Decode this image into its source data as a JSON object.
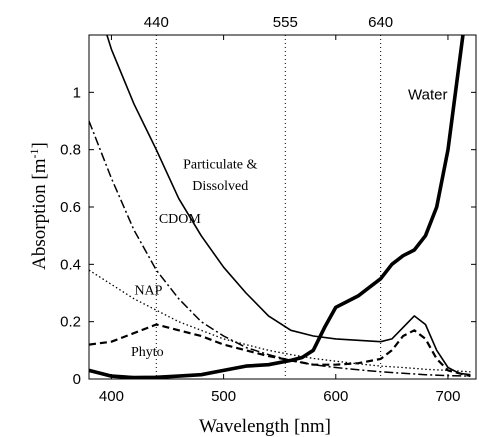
{
  "chart_data": {
    "type": "line",
    "xlabel": "Wavelength [nm]",
    "ylabel": "Absorption [m-1]",
    "ylabel_base": "Absorption [m",
    "ylabel_sup": "-1",
    "ylabel_close": "]",
    "xlim": [
      380,
      725
    ],
    "ylim": [
      0,
      1.2
    ],
    "x_ticks": [
      400,
      500,
      600,
      700
    ],
    "x_tick_labels": [
      "400",
      "500",
      "600",
      "700"
    ],
    "y_ticks": [
      0,
      0.2,
      0.4,
      0.6,
      0.8,
      1
    ],
    "y_tick_labels": [
      "0",
      "0.2",
      "0.4",
      "0.6",
      "0.8",
      "1"
    ],
    "top_ticks": [
      440,
      555,
      640
    ],
    "top_tick_labels": [
      "440",
      "555",
      "640"
    ],
    "reference_lines": [
      440,
      555,
      640
    ],
    "grid": false,
    "series": [
      {
        "name": "Water",
        "style": "solid-thick",
        "x": [
          380,
          400,
          420,
          440,
          460,
          480,
          500,
          520,
          540,
          560,
          570,
          580,
          590,
          600,
          610,
          620,
          630,
          640,
          650,
          660,
          670,
          680,
          690,
          700,
          710,
          720
        ],
        "y": [
          0.03,
          0.01,
          0.005,
          0.006,
          0.01,
          0.015,
          0.03,
          0.045,
          0.05,
          0.065,
          0.075,
          0.1,
          0.18,
          0.25,
          0.27,
          0.29,
          0.32,
          0.35,
          0.4,
          0.43,
          0.45,
          0.5,
          0.6,
          0.8,
          1.1,
          1.4
        ]
      },
      {
        "name": "Particulate & Dissolved",
        "style": "solid",
        "x": [
          380,
          400,
          420,
          440,
          460,
          480,
          500,
          520,
          540,
          560,
          580,
          600,
          620,
          640,
          650,
          660,
          670,
          680,
          690,
          700,
          710,
          720
        ],
        "y": [
          1.4,
          1.15,
          0.96,
          0.8,
          0.63,
          0.5,
          0.39,
          0.3,
          0.22,
          0.17,
          0.15,
          0.14,
          0.135,
          0.13,
          0.14,
          0.18,
          0.22,
          0.19,
          0.1,
          0.04,
          0.02,
          0.015
        ]
      },
      {
        "name": "CDOM",
        "style": "dash-dot",
        "x": [
          380,
          400,
          420,
          440,
          460,
          480,
          500,
          520,
          540,
          560,
          580,
          600,
          620,
          640,
          660,
          680,
          700,
          720
        ],
        "y": [
          0.9,
          0.7,
          0.52,
          0.38,
          0.28,
          0.2,
          0.15,
          0.11,
          0.085,
          0.065,
          0.05,
          0.04,
          0.032,
          0.025,
          0.02,
          0.015,
          0.012,
          0.01
        ]
      },
      {
        "name": "NAP",
        "style": "dotted",
        "x": [
          380,
          400,
          420,
          440,
          460,
          480,
          500,
          520,
          540,
          560,
          580,
          600,
          620,
          640,
          660,
          680,
          700,
          720
        ],
        "y": [
          0.38,
          0.33,
          0.28,
          0.24,
          0.2,
          0.17,
          0.14,
          0.12,
          0.1,
          0.085,
          0.072,
          0.062,
          0.053,
          0.045,
          0.04,
          0.034,
          0.03,
          0.025
        ]
      },
      {
        "name": "Phyto",
        "style": "dashed",
        "x": [
          380,
          400,
          420,
          440,
          460,
          480,
          500,
          520,
          540,
          560,
          580,
          600,
          620,
          640,
          650,
          660,
          670,
          680,
          690,
          700,
          720
        ],
        "y": [
          0.12,
          0.13,
          0.16,
          0.19,
          0.17,
          0.15,
          0.12,
          0.1,
          0.08,
          0.065,
          0.05,
          0.05,
          0.055,
          0.07,
          0.1,
          0.15,
          0.17,
          0.14,
          0.07,
          0.03,
          0.01
        ]
      }
    ],
    "annotations": [
      {
        "text": "Water",
        "x": 682,
        "y": 0.975
      },
      {
        "text": "Particulate &",
        "x": 497,
        "y": 0.735
      },
      {
        "text": "Dissolved",
        "x": 497,
        "y": 0.66
      },
      {
        "text": "CDOM",
        "x": 461,
        "y": 0.545
      },
      {
        "text": "NAP",
        "x": 433,
        "y": 0.295
      },
      {
        "text": "Phyto",
        "x": 432,
        "y": 0.08
      }
    ]
  }
}
